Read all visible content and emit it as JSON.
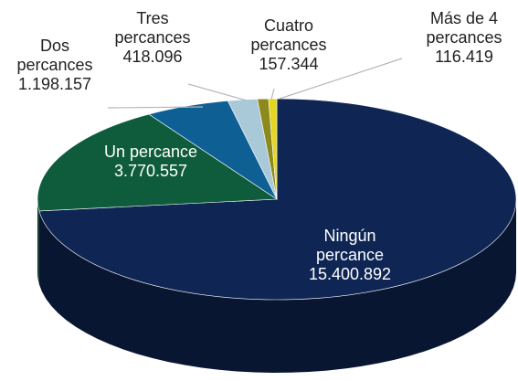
{
  "chart_data": {
    "type": "pie",
    "categories": [
      "Ningún percance",
      "Un percance",
      "Dos percances",
      "Tres percances",
      "Cuatro percances",
      "Más de 4 percances"
    ],
    "values": [
      15400892,
      3770557,
      1198157,
      418096,
      157344,
      116419
    ],
    "value_labels": [
      "15.400.892",
      "3.770.557",
      "1.198.157",
      "418.096",
      "157.344",
      "116.419"
    ],
    "colors": [
      "#0f2554",
      "#0f5c3c",
      "#0d5f94",
      "#a9c9d9",
      "#8c8a1c",
      "#e6d51e"
    ]
  }
}
